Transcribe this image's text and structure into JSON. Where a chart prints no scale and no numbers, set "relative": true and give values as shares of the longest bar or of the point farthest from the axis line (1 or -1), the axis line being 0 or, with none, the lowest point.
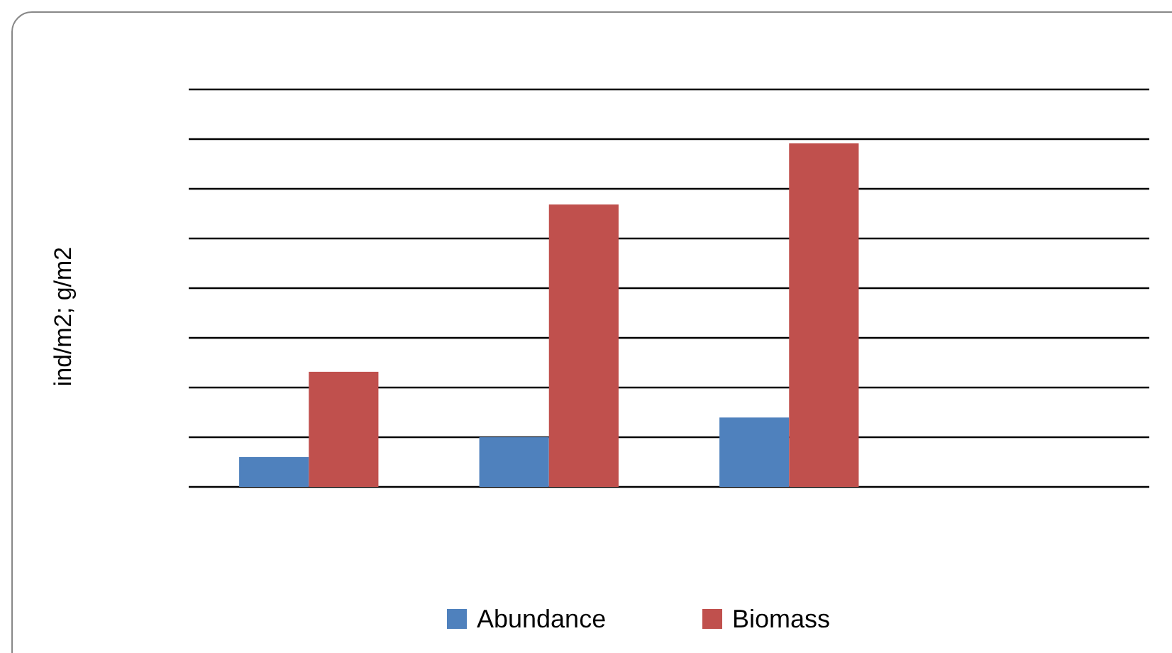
{
  "chart_data": {
    "type": "bar",
    "relative": true,
    "ylabel": "ind/m2; g/m2",
    "categories": [
      null,
      null,
      null
    ],
    "series": [
      {
        "name": "Abundance",
        "color": "#4f81bd",
        "values": [
          0.087,
          0.145,
          0.202
        ]
      },
      {
        "name": "Biomass",
        "color": "#c0504d",
        "values": [
          0.335,
          0.822,
          1
        ]
      }
    ],
    "grid": "y",
    "legend": "bottom"
  }
}
